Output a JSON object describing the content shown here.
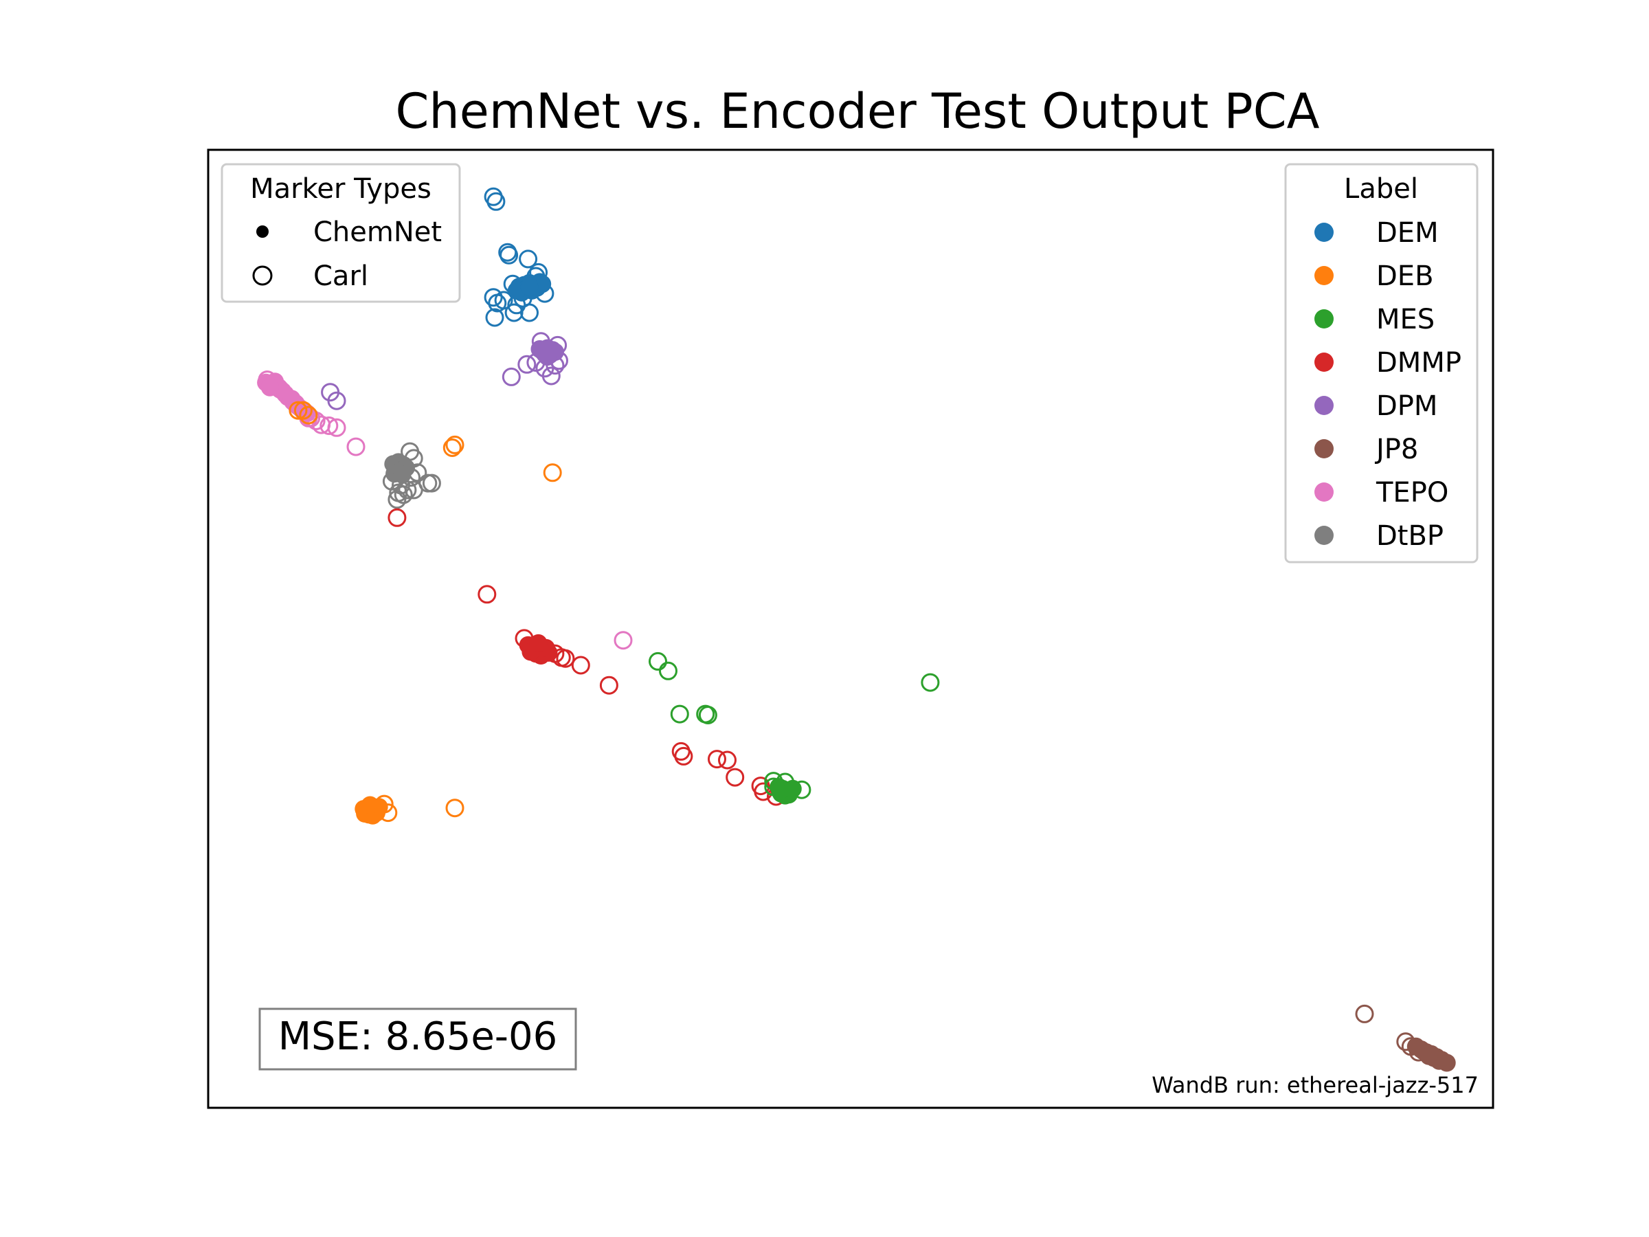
{
  "chart_data": {
    "type": "scatter",
    "title": "ChemNet vs. Encoder Test Output PCA",
    "xlabel": "",
    "ylabel": "",
    "axes_visible": false,
    "xlim": [
      0,
      1
    ],
    "ylim": [
      0,
      1
    ],
    "grid": false,
    "legends": [
      {
        "title": "Marker Types",
        "placement": "top-left",
        "entries": [
          {
            "label": "ChemNet",
            "marker": "filled",
            "color": "#000000"
          },
          {
            "label": "Carl",
            "marker": "hollow",
            "color": "#000000"
          }
        ]
      },
      {
        "title": "Label",
        "placement": "top-right",
        "entries": [
          {
            "label": "DEM",
            "color": "#1f77b4"
          },
          {
            "label": "DEB",
            "color": "#ff7f0e"
          },
          {
            "label": "MES",
            "color": "#2ca02c"
          },
          {
            "label": "DMMP",
            "color": "#d62728"
          },
          {
            "label": "DPM",
            "color": "#9467bd"
          },
          {
            "label": "JP8",
            "color": "#8c564b"
          },
          {
            "label": "TEPO",
            "color": "#e377c2"
          },
          {
            "label": "DtBP",
            "color": "#7f7f7f"
          }
        ]
      }
    ],
    "annotations": {
      "mse": "MSE: 8.65e-06",
      "run": "WandB run: ethereal-jazz-517"
    },
    "series": [
      {
        "label": "DEM",
        "color": "#1f77b4",
        "filled": [
          [
            0.242,
            0.857
          ],
          [
            0.246,
            0.859
          ],
          [
            0.25,
            0.861
          ],
          [
            0.254,
            0.858
          ],
          [
            0.258,
            0.862
          ],
          [
            0.248,
            0.855
          ],
          [
            0.252,
            0.853
          ],
          [
            0.244,
            0.851
          ],
          [
            0.256,
            0.856
          ],
          [
            0.24,
            0.853
          ],
          [
            0.26,
            0.86
          ],
          [
            0.25,
            0.857
          ]
        ],
        "hollow": [
          [
            0.222,
            0.951
          ],
          [
            0.224,
            0.946
          ],
          [
            0.233,
            0.893
          ],
          [
            0.234,
            0.89
          ],
          [
            0.249,
            0.886
          ],
          [
            0.222,
            0.846
          ],
          [
            0.225,
            0.84
          ],
          [
            0.223,
            0.825
          ],
          [
            0.24,
            0.838
          ],
          [
            0.25,
            0.83
          ],
          [
            0.262,
            0.85
          ],
          [
            0.238,
            0.83
          ],
          [
            0.245,
            0.845
          ],
          [
            0.255,
            0.868
          ],
          [
            0.237,
            0.86
          ],
          [
            0.257,
            0.872
          ],
          [
            0.23,
            0.843
          ]
        ]
      },
      {
        "label": "DPM",
        "color": "#9467bd",
        "filled": [
          [
            0.26,
            0.79
          ],
          [
            0.264,
            0.793
          ],
          [
            0.268,
            0.791
          ],
          [
            0.262,
            0.787
          ],
          [
            0.266,
            0.786
          ],
          [
            0.27,
            0.789
          ],
          [
            0.258,
            0.792
          ],
          [
            0.264,
            0.784
          ]
        ],
        "hollow": [
          [
            0.236,
            0.763
          ],
          [
            0.267,
            0.764
          ],
          [
            0.095,
            0.747
          ],
          [
            0.1,
            0.738
          ],
          [
            0.255,
            0.778
          ],
          [
            0.273,
            0.78
          ],
          [
            0.248,
            0.776
          ],
          [
            0.262,
            0.772
          ],
          [
            0.27,
            0.775
          ],
          [
            0.259,
            0.8
          ],
          [
            0.272,
            0.796
          ]
        ]
      },
      {
        "label": "TEPO",
        "color": "#e377c2",
        "filled": [
          [
            0.045,
            0.757
          ],
          [
            0.05,
            0.755
          ],
          [
            0.055,
            0.752
          ],
          [
            0.058,
            0.748
          ],
          [
            0.062,
            0.742
          ],
          [
            0.066,
            0.737
          ],
          [
            0.07,
            0.732
          ],
          [
            0.074,
            0.727
          ],
          [
            0.06,
            0.745
          ],
          [
            0.052,
            0.758
          ],
          [
            0.048,
            0.752
          ],
          [
            0.065,
            0.74
          ],
          [
            0.072,
            0.73
          ],
          [
            0.077,
            0.725
          ]
        ],
        "hollow": [
          [
            0.08,
            0.72
          ],
          [
            0.088,
            0.713
          ],
          [
            0.094,
            0.712
          ],
          [
            0.1,
            0.71
          ],
          [
            0.115,
            0.69
          ],
          [
            0.323,
            0.488
          ],
          [
            0.046,
            0.76
          ],
          [
            0.056,
            0.75
          ],
          [
            0.068,
            0.735
          ],
          [
            0.078,
            0.72
          ],
          [
            0.084,
            0.717
          ]
        ]
      },
      {
        "label": "DEB",
        "color": "#ff7f0e",
        "filled": [
          [
            0.121,
            0.312
          ],
          [
            0.124,
            0.31
          ],
          [
            0.127,
            0.313
          ],
          [
            0.13,
            0.311
          ],
          [
            0.133,
            0.314
          ],
          [
            0.125,
            0.306
          ],
          [
            0.128,
            0.305
          ],
          [
            0.122,
            0.307
          ],
          [
            0.131,
            0.308
          ],
          [
            0.126,
            0.316
          ]
        ],
        "hollow": [
          [
            0.137,
            0.317
          ],
          [
            0.14,
            0.308
          ],
          [
            0.192,
            0.692
          ],
          [
            0.19,
            0.689
          ],
          [
            0.268,
            0.663
          ],
          [
            0.192,
            0.313
          ],
          [
            0.074,
            0.728
          ],
          [
            0.078,
            0.723
          ],
          [
            0.07,
            0.728
          ]
        ]
      },
      {
        "label": "DtBP",
        "color": "#7f7f7f",
        "filled": [
          [
            0.144,
            0.672
          ],
          [
            0.148,
            0.674
          ],
          [
            0.152,
            0.671
          ],
          [
            0.146,
            0.666
          ],
          [
            0.15,
            0.665
          ],
          [
            0.154,
            0.668
          ],
          [
            0.145,
            0.662
          ],
          [
            0.151,
            0.661
          ]
        ],
        "hollow": [
          [
            0.157,
            0.685
          ],
          [
            0.16,
            0.678
          ],
          [
            0.143,
            0.654
          ],
          [
            0.15,
            0.65
          ],
          [
            0.158,
            0.658
          ],
          [
            0.163,
            0.663
          ],
          [
            0.171,
            0.652
          ],
          [
            0.174,
            0.652
          ],
          [
            0.148,
            0.642
          ],
          [
            0.155,
            0.645
          ],
          [
            0.147,
            0.635
          ],
          [
            0.152,
            0.64
          ],
          [
            0.16,
            0.645
          ]
        ]
      },
      {
        "label": "DMMP",
        "color": "#d62728",
        "filled": [
          [
            0.249,
            0.483
          ],
          [
            0.253,
            0.481
          ],
          [
            0.257,
            0.479
          ],
          [
            0.261,
            0.477
          ],
          [
            0.265,
            0.475
          ],
          [
            0.255,
            0.474
          ],
          [
            0.259,
            0.472
          ],
          [
            0.251,
            0.476
          ],
          [
            0.263,
            0.48
          ],
          [
            0.257,
            0.485
          ]
        ],
        "hollow": [
          [
            0.147,
            0.616
          ],
          [
            0.217,
            0.536
          ],
          [
            0.27,
            0.474
          ],
          [
            0.278,
            0.469
          ],
          [
            0.29,
            0.462
          ],
          [
            0.312,
            0.441
          ],
          [
            0.368,
            0.372
          ],
          [
            0.37,
            0.367
          ],
          [
            0.396,
            0.364
          ],
          [
            0.41,
            0.345
          ],
          [
            0.404,
            0.363
          ],
          [
            0.43,
            0.336
          ],
          [
            0.432,
            0.33
          ],
          [
            0.442,
            0.325
          ],
          [
            0.246,
            0.49
          ],
          [
            0.275,
            0.47
          ]
        ]
      },
      {
        "label": "MES",
        "color": "#2ca02c",
        "filled": [
          [
            0.444,
            0.335
          ],
          [
            0.447,
            0.333
          ],
          [
            0.45,
            0.331
          ],
          [
            0.453,
            0.33
          ],
          [
            0.446,
            0.328
          ],
          [
            0.449,
            0.326
          ],
          [
            0.452,
            0.327
          ],
          [
            0.445,
            0.331
          ],
          [
            0.455,
            0.333
          ]
        ],
        "hollow": [
          [
            0.35,
            0.466
          ],
          [
            0.358,
            0.456
          ],
          [
            0.367,
            0.411
          ],
          [
            0.387,
            0.411
          ],
          [
            0.389,
            0.41
          ],
          [
            0.562,
            0.444
          ],
          [
            0.44,
            0.341
          ],
          [
            0.44,
            0.335
          ],
          [
            0.462,
            0.332
          ],
          [
            0.449,
            0.34
          ]
        ]
      },
      {
        "label": "JP8",
        "color": "#8c564b",
        "filled": [
          [
            0.94,
            0.064
          ],
          [
            0.944,
            0.061
          ],
          [
            0.948,
            0.058
          ],
          [
            0.952,
            0.056
          ],
          [
            0.956,
            0.053
          ],
          [
            0.96,
            0.05
          ],
          [
            0.964,
            0.047
          ],
          [
            0.946,
            0.059
          ],
          [
            0.954,
            0.052
          ],
          [
            0.958,
            0.049
          ],
          [
            0.95,
            0.054
          ]
        ],
        "hollow": [
          [
            0.9,
            0.098
          ],
          [
            0.932,
            0.069
          ],
          [
            0.936,
            0.064
          ],
          [
            0.942,
            0.058
          ]
        ]
      }
    ]
  }
}
